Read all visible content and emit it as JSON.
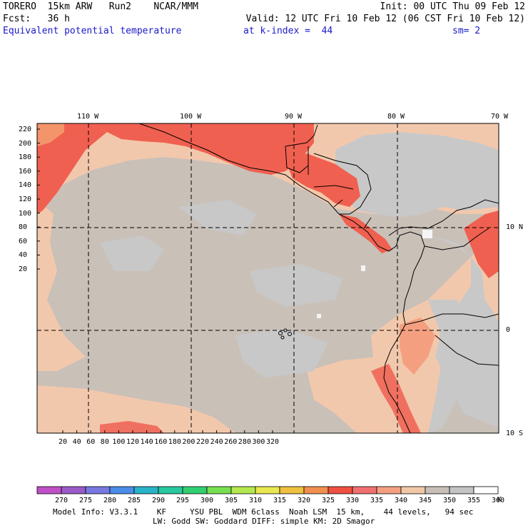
{
  "header": {
    "line1_left": "TORERO  15km ARW   Run2    NCAR/MMM",
    "line1_right": "Init: 00 UTC Thu 09 Feb 12",
    "line2_left": "Fcst:   36 h",
    "line2_right": "Valid: 12 UTC Fri 10 Feb 12 (06 CST Fri 10 Feb 12)",
    "line3_field": "Equivalent potential temperature",
    "line3_level": "at k-index =  44",
    "line3_sm": "sm= 2"
  },
  "map": {
    "lon_labels": [
      "110 W",
      "100 W",
      "90 W",
      "80 W",
      "70 W"
    ],
    "lat_labels": [
      "10 N",
      "0",
      "10 S"
    ],
    "y_ticks": [
      "220",
      "200",
      "180",
      "160",
      "140",
      "120",
      "100",
      "80",
      "60",
      "40",
      "20"
    ],
    "x_ticks": [
      "20",
      "40",
      "60",
      "80",
      "100",
      "120",
      "140",
      "160",
      "180",
      "200",
      "220",
      "240",
      "260",
      "280",
      "300",
      "320"
    ]
  },
  "colorbar": {
    "labels": [
      "270",
      "275",
      "280",
      "285",
      "290",
      "295",
      "300",
      "305",
      "310",
      "315",
      "320",
      "325",
      "330",
      "335",
      "340",
      "345",
      "350",
      "355",
      "360"
    ],
    "unit": "K",
    "colors": [
      "#c050c8",
      "#9a5ac8",
      "#7878e0",
      "#4a8ce8",
      "#28b4c8",
      "#28c8a0",
      "#30d070",
      "#78e050",
      "#b4e850",
      "#e8e850",
      "#f0c040",
      "#f09050",
      "#f05040",
      "#f07070",
      "#f4a080",
      "#f0c8a8",
      "#c8c0b8",
      "#c4c4c4",
      "#ffffff"
    ]
  },
  "footer": {
    "line1": "Model Info: V3.3.1    KF     YSU PBL  WDM 6class  Noah LSM  15 km,    44 levels,   94 sec",
    "line2": "LW: Godd SW: Goddard DIFF: simple KM: 2D Smagor"
  }
}
